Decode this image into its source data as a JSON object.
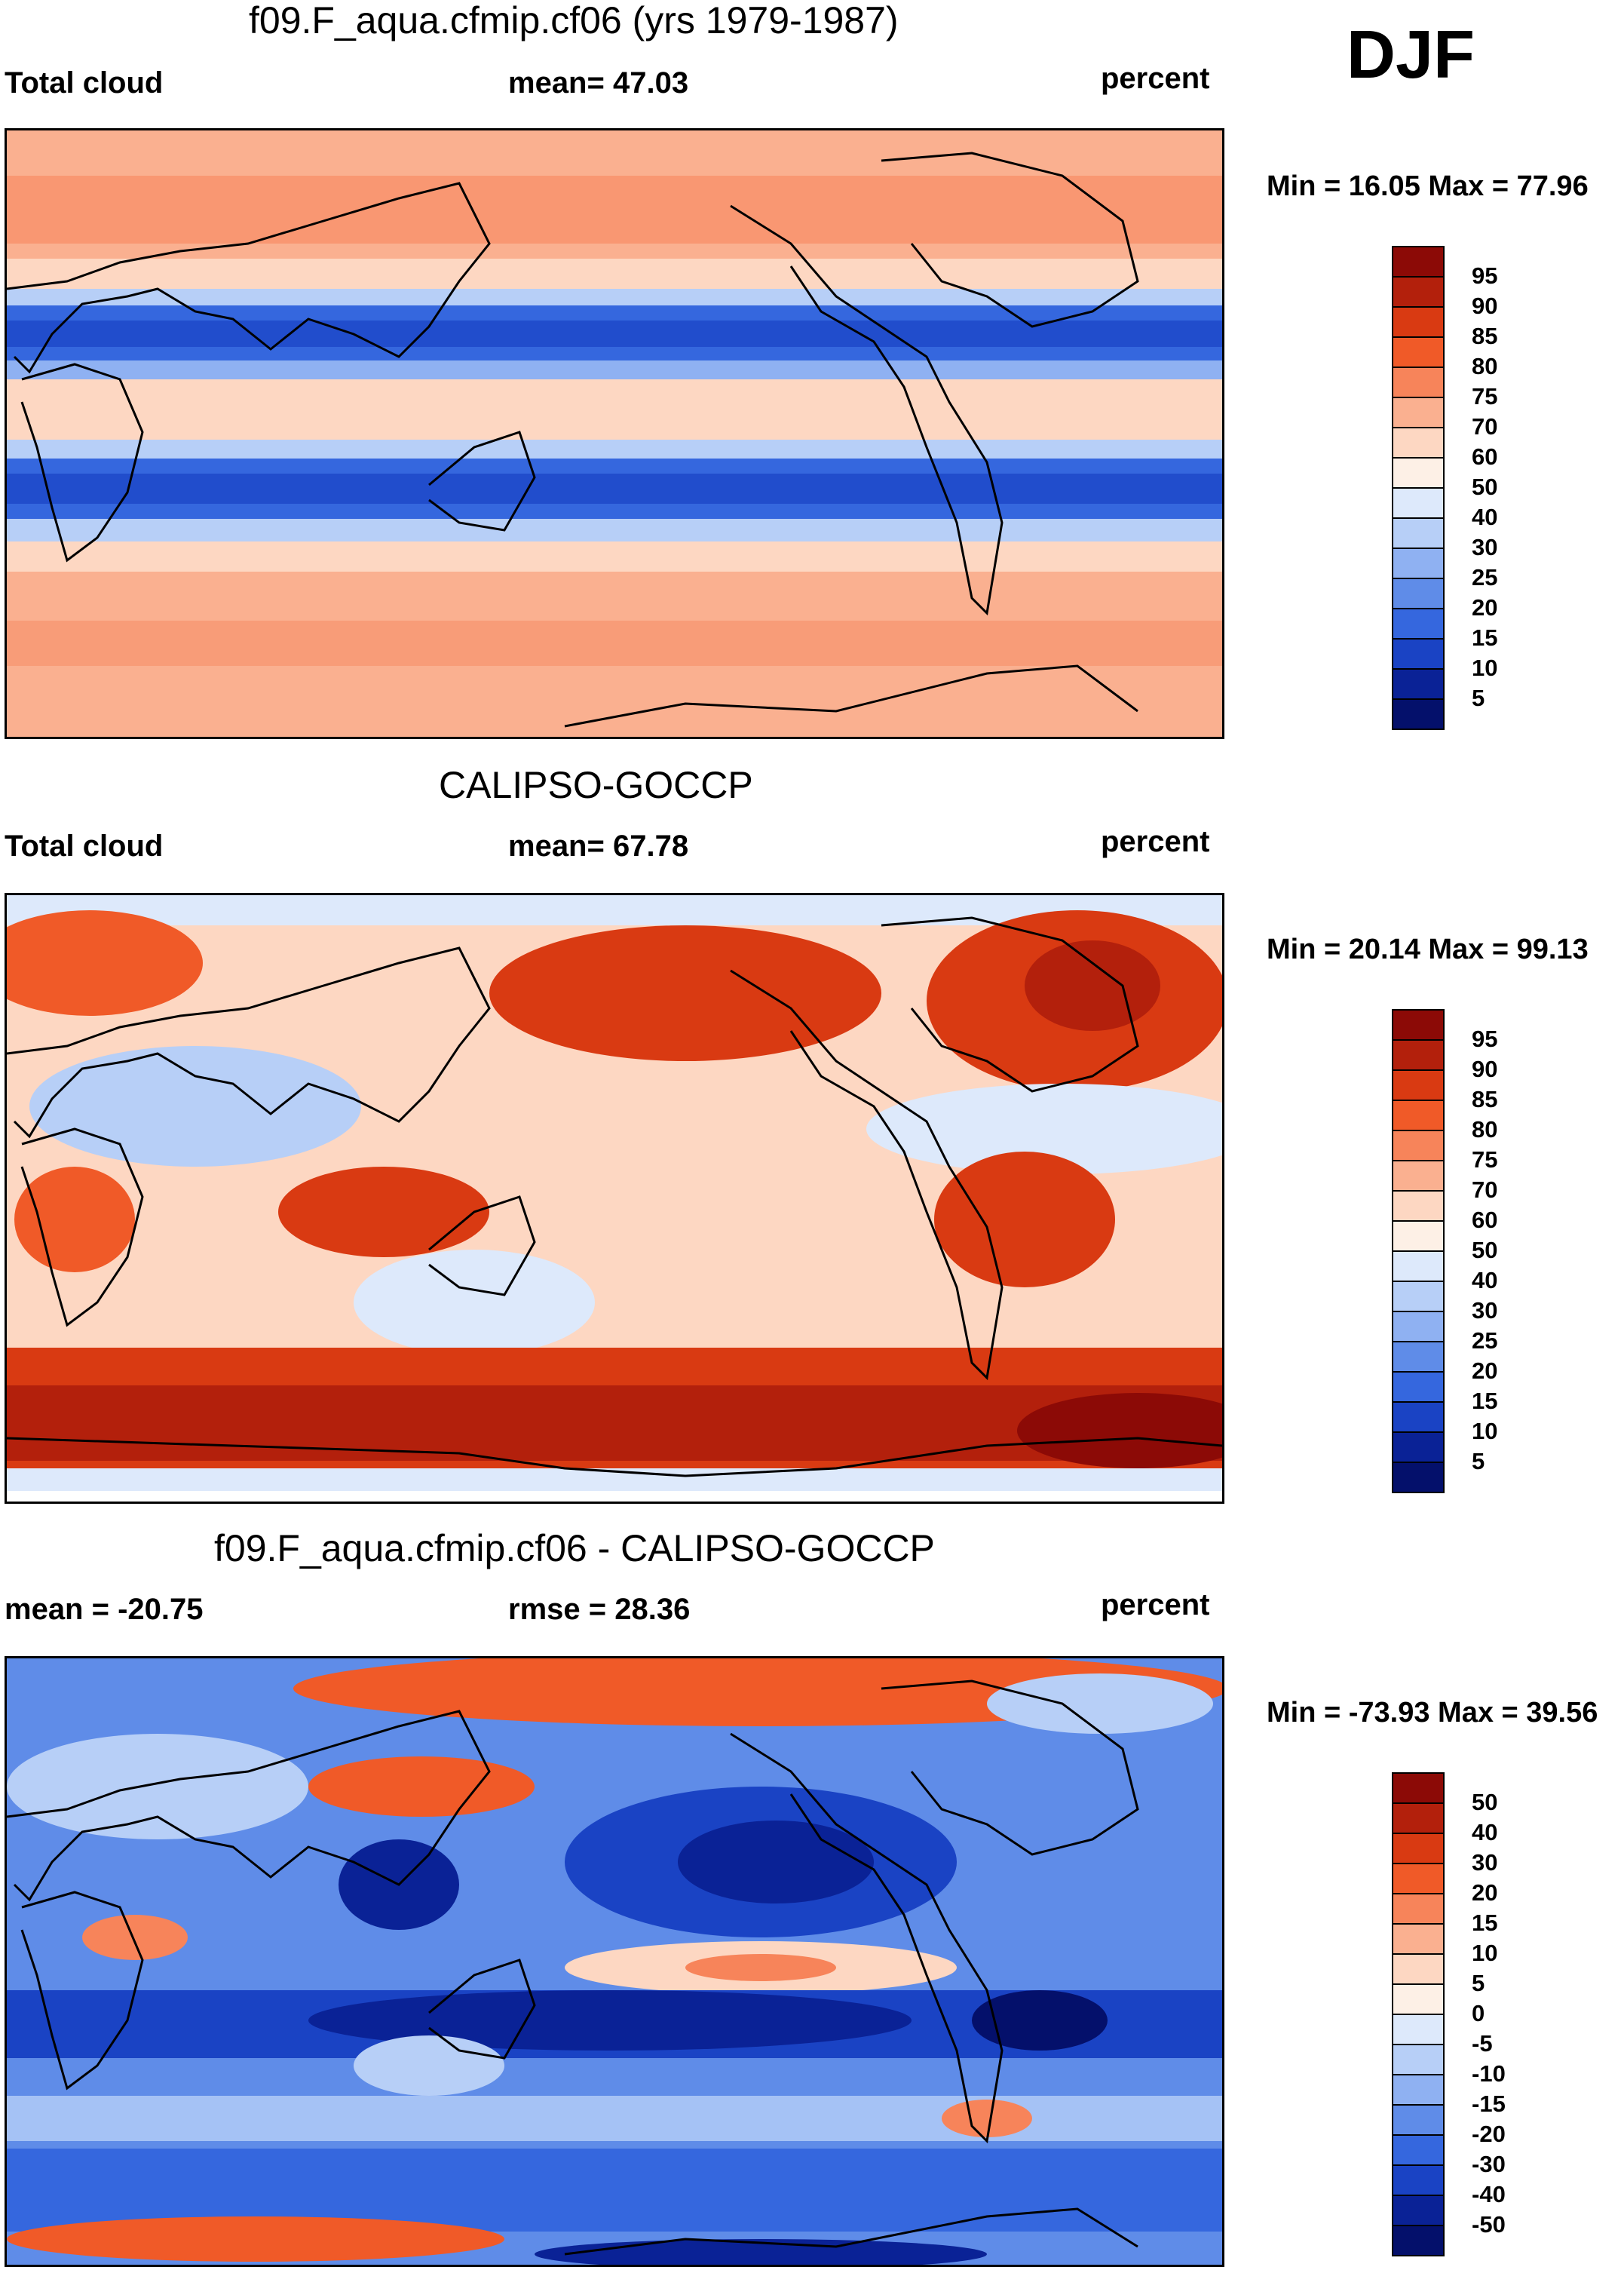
{
  "season": "DJF",
  "panels": [
    {
      "title": "f09.F_aqua.cfmip.cf06 (yrs 1979-1987)",
      "left_label": "Total cloud",
      "center_label": "mean=  47.03",
      "right_label": "percent",
      "minmax": "Min =  16.05 Max =  77.96",
      "colorbar_labels": [
        "95",
        "90",
        "85",
        "80",
        "75",
        "70",
        "60",
        "50",
        "40",
        "30",
        "25",
        "20",
        "15",
        "10",
        "5"
      ],
      "colorbar_colors": [
        "#8c0a06",
        "#b3200c",
        "#d93a12",
        "#f05a28",
        "#f7845a",
        "#fab090",
        "#fdd7c2",
        "#fdf0e6",
        "#dde9fb",
        "#b7cff7",
        "#8fb1f2",
        "#5f8ce8",
        "#3567de",
        "#1a43c4",
        "#0a2296",
        "#04106b"
      ]
    },
    {
      "title": "CALIPSO-GOCCP",
      "left_label": "Total cloud",
      "center_label": "mean=  67.78",
      "right_label": "percent",
      "minmax": "Min =  20.14 Max =  99.13",
      "colorbar_labels": [
        "95",
        "90",
        "85",
        "80",
        "75",
        "70",
        "60",
        "50",
        "40",
        "30",
        "25",
        "20",
        "15",
        "10",
        "5"
      ],
      "colorbar_colors": [
        "#8c0a06",
        "#b3200c",
        "#d93a12",
        "#f05a28",
        "#f7845a",
        "#fab090",
        "#fdd7c2",
        "#fdf0e6",
        "#dde9fb",
        "#b7cff7",
        "#8fb1f2",
        "#5f8ce8",
        "#3567de",
        "#1a43c4",
        "#0a2296",
        "#04106b"
      ]
    },
    {
      "title": "f09.F_aqua.cfmip.cf06 - CALIPSO-GOCCP",
      "left_label": "mean = -20.75",
      "center_label": "rmse =  28.36",
      "right_label": "percent",
      "minmax": "Min = -73.93 Max =  39.56",
      "colorbar_labels": [
        "50",
        "40",
        "30",
        "20",
        "15",
        "10",
        "5",
        "0",
        "-5",
        "-10",
        "-15",
        "-20",
        "-30",
        "-40",
        "-50"
      ],
      "colorbar_colors": [
        "#8c0a06",
        "#b3200c",
        "#d93a12",
        "#f05a28",
        "#f7845a",
        "#fab090",
        "#fdd7c2",
        "#fdf0e6",
        "#dde9fb",
        "#b7cff7",
        "#8fb1f2",
        "#5f8ce8",
        "#3567de",
        "#1a43c4",
        "#0a2296",
        "#04106b"
      ]
    }
  ]
}
